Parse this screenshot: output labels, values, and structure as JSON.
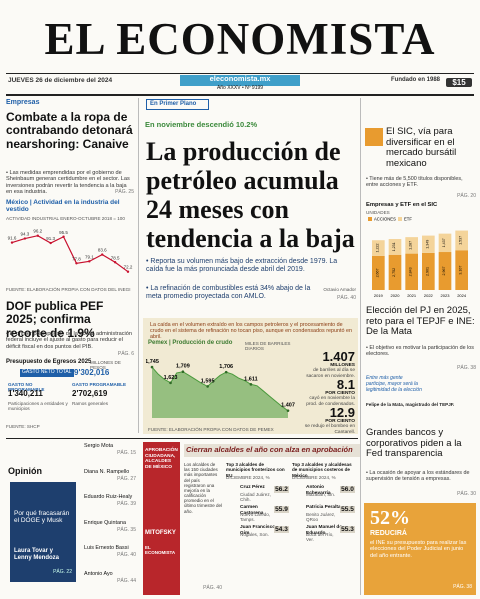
{
  "masthead": {
    "title": "EL ECONOMISTA",
    "date": "JUEVES 26 de diciembre del 2024",
    "site": "eleconomista.mx",
    "issue": "Año XXXV • Nº 9199",
    "founded": "Fundado en 1988",
    "price": "$15"
  },
  "left": {
    "section": "Empresas",
    "headline": "Combate a la ropa de contrabando detonará nearshoring: Canaive",
    "bullet": "• Las medidas emprendidas por el gobierno de Sheinbaum generan certidumbre en el sector. Las inversiones podrán revertir la tendencia a la baja en esa industria.",
    "page": "PÁG. 25",
    "chart": {
      "type": "line",
      "title": "México | Actividad en la industria del vestido",
      "subtitle": "ACTIVIDAD INDUSTRIAL ENERO-OCTUBRE 2018 = 100",
      "values": [
        91.6,
        94.3,
        96.2,
        91.3,
        95.5,
        77.8,
        79.1,
        83.6,
        78.5,
        72.2
      ],
      "color": "#c8102e",
      "ylim": [
        68,
        100
      ],
      "source": "FUENTE: ELABORACIÓN PROPIA CON DATOS DEL INEGI"
    },
    "headline2": "DOF publica PEF 2025; confirma recorte de 1.9%",
    "bullet2": "• El primer presupuesto de la actual administración federal incluye el ajuste al gasto para reducir el déficit fiscal en dos puntos del PIB.",
    "page2": "PÁG. 6",
    "budget": {
      "title": "Presupuesto de Egresos 2025",
      "unit": "MILLONES DE PESOS",
      "total_label": "GASTO NETO TOTAL",
      "total": "9'302,016",
      "items": [
        {
          "label": "GASTO NO PROGRAMABLE",
          "value": "1'340,211",
          "note": "Participaciones a entidades y municipios"
        },
        {
          "label": "GASTO PROGRAMABLE",
          "value": "2'702,619",
          "note": "Ramos generales"
        }
      ],
      "source": "FUENTE: SHCP"
    }
  },
  "center": {
    "section": "En Primer Plano",
    "kicker": "En noviembre descendió 10.2%",
    "headline": "La producción de petróleo acumula 24 meses con tendencia a la baja",
    "bullets": [
      "• Reporta su volumen más bajo de extracción desde 1979. La caída fue la más pronunciada desde abril del 2019.",
      "• La refinación de combustibles está 34% abajo de la meta promedio proyectada con AMLO."
    ],
    "author": "Octavio Amador",
    "page": "PÁG. 40",
    "chart": {
      "type": "area",
      "intro": "La caída en el volumen extraído en los campos petroleros y el procesamiento de crudo en el sistema de refinación no tocan piso, aunque en condensados repuntó en abril.",
      "title": "Pemex | Producción de crudo",
      "unit": "MILES DE BARRILES DIARIOS",
      "values": [
        1745,
        1690,
        1650,
        1623,
        1700,
        1709,
        1680,
        1650,
        1620,
        1595,
        1640,
        1680,
        1706,
        1690,
        1660,
        1640,
        1611,
        1600,
        1560,
        1520,
        1480,
        1440,
        1407
      ],
      "value_labels": [
        "1,745",
        null,
        null,
        "1,623",
        null,
        "1,709",
        null,
        null,
        null,
        "1,595",
        null,
        null,
        "1,706",
        null,
        null,
        null,
        "1,611",
        null,
        null,
        null,
        null,
        null,
        "1,407"
      ],
      "color": "#4a9a3c",
      "ylim": [
        1350,
        1800
      ],
      "source": "FUENTE: ELABORACIÓN PROPIA CON DATOS DE PEMEX"
    },
    "stats": [
      {
        "value": "1.407",
        "unit": "MILLONES",
        "text": "de barriles al día se sacaron en noviembre."
      },
      {
        "value": "8.1",
        "unit": "POR CIENTO",
        "text": "cayó en noviembre la prod. de condensados."
      },
      {
        "value": "12.9",
        "unit": "POR CIENTO",
        "text": "se redujo el bombeo en Cantarell."
      }
    ]
  },
  "right": {
    "story1": {
      "headline": "El SIC, vía para diversificar en el mercado bursátil mexicano",
      "bullet": "• Tiene más de 5,500 títulos disponibles, entre acciones y ETF.",
      "page": "PÁG. 20",
      "chart": {
        "type": "bar",
        "title": "Empresas y ETF en el SIC",
        "unit": "UNIDADES",
        "categories": [
          "2019",
          "2020",
          "2021",
          "2022",
          "2023",
          "2024"
        ],
        "series": [
          {
            "name": "ACCIONES",
            "color": "#e89b2f",
            "values": [
              2667,
              2752,
              2843,
              2901,
              2967,
              3107
            ],
            "value_labels": [
              "2,667",
              "2,752",
              "2,843",
              "2,901",
              "2,967",
              "3,107"
            ]
          },
          {
            "name": "ETF",
            "color": "#f4d49a",
            "values": [
              1222,
              1231,
              1287,
              1349,
              1437,
              1537
            ],
            "value_labels": [
              "1,222",
              "1,231",
              "1,287",
              "1,349",
              "1,437",
              "1,537"
            ]
          }
        ],
        "ylim": [
          0,
          5000
        ]
      }
    },
    "story2": {
      "headline": "Elección del PJ en 2025, reto para el TEPJF e INE: De la Mata",
      "bullet": "• El objetivo es motivar la participación de los electores.",
      "page": "PÁG. 38",
      "quote": "Entre más gente participe, mayor será la legitimidad de la elección",
      "caption": "Felipe de la Mata, magistrado del TEPJF."
    },
    "story3": {
      "headline": "Grandes bancos y corporativos piden a la Fed transparencia",
      "bullet": "• La ocasión de apoyar a los estándares de supervisión de tensión a empresas.",
      "page": "PÁG. 30"
    },
    "promo": {
      "value": "52%",
      "verb": "REDUCIRÁ",
      "text": "el INE su presupuesto para realizar las elecciones del Poder Judicial en junio del año entrante.",
      "page": "PÁG. 38"
    }
  },
  "opinion": {
    "title": "Opinión",
    "featured": {
      "title": "Por qué fracasarán el DOGE y Musk",
      "authors": "Laura Tovar y Lenny Mendoza",
      "page": "PÁG. 22"
    },
    "columnists": [
      {
        "name": "Sergio Mota",
        "page": "PÁG. 15"
      },
      {
        "name": "Diana N. Rampello",
        "page": "PÁG. 27"
      },
      {
        "name": "Eduardo Ruiz-Healy",
        "page": "PÁG. 39"
      },
      {
        "name": "Enrique Quintana",
        "page": "PÁG. 35"
      },
      {
        "name": "Luis Ernesto Bassi",
        "page": "PÁG. 40"
      },
      {
        "name": "Antonio Ayo",
        "page": "PÁG. 44"
      }
    ]
  },
  "survey": {
    "label": "APROBACIÓN CIUDADANA, ALCALDES DE MÉXICO",
    "brand1": "MITOFSKY",
    "brand2": "EL ECONOMISTA",
    "headline": "Cierran alcaldes el año con alza en aprobación",
    "intro": "Los alcaldes de las 150 ciudades más importantes del país registraron una mejoría en la calificación promedio en el último trimestre del año.",
    "page": "PÁG. 40",
    "lists": [
      {
        "title": "Top 3 alcaldes de municipios fronterizos con EU",
        "unit": "DICIEMBRE 2024, %",
        "rows": [
          {
            "name": "Cruz Pérez",
            "city": "Ciudad Juárez, Chih.",
            "value": "56.2"
          },
          {
            "name": "Carmen Castorena",
            "city": "Nuevo Laredo, Tamps.",
            "value": "55.9"
          },
          {
            "name": "Juan Francisco Gim",
            "city": "Nogales, Son.",
            "value": "54.3"
          }
        ]
      },
      {
        "title": "Top 3 alcaldes y alcaldesas de municipios costeros de México",
        "unit": "DICIEMBRE 2024, %",
        "rows": [
          {
            "name": "Antonio Echevarría",
            "city": "Mazatlán, Sin.",
            "value": "56.0"
          },
          {
            "name": "Patricia Peralta",
            "city": "Benito Juárez, QRoo",
            "value": "55.5"
          },
          {
            "name": "Juan Manuel de Eduardo",
            "city": "Boca del Río, Ver.",
            "value": "55.3"
          }
        ]
      }
    ]
  }
}
